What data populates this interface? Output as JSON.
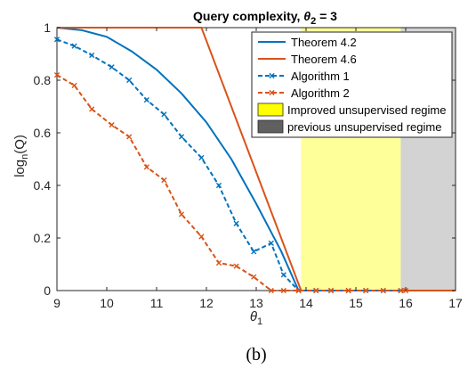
{
  "caption": "(b)",
  "chart_data": {
    "type": "line",
    "title_prefix": "Query complexity, ",
    "title_symbol": "θ",
    "title_subscript": "2",
    "title_suffix": " = 3",
    "xlabel_symbol": "θ",
    "xlabel_subscript": "1",
    "ylabel_prefix": "log",
    "ylabel_subscript": "n",
    "ylabel_suffix": "(Q)",
    "xlim": [
      9,
      17
    ],
    "ylim": [
      0,
      1
    ],
    "xticks": [
      9,
      10,
      11,
      12,
      13,
      14,
      15,
      16,
      17
    ],
    "yticks": [
      0,
      0.2,
      0.4,
      0.6,
      0.8,
      1
    ],
    "ytick_labels": [
      "0",
      "0.2",
      "0.4",
      "0.6",
      "0.8",
      "1"
    ],
    "grid": false,
    "legend_position": "top-right",
    "regions": [
      {
        "name": "Improved unsupervised regime",
        "x_start": 13.9,
        "x_end": 15.9,
        "color": "#ffff99"
      },
      {
        "name": "previous unsupervised regime",
        "x_start": 15.9,
        "x_end": 17,
        "color": "#d3d3d3"
      }
    ],
    "legend_swatches": [
      {
        "name": "Improved unsupervised regime",
        "fill": "#ffff00"
      },
      {
        "name": "previous unsupervised regime",
        "fill": "#606060"
      }
    ],
    "series": [
      {
        "name": "Theorem 4.2",
        "color": "#0072bd",
        "style": "solid",
        "marker": "none",
        "x": [
          9.0,
          9.5,
          10.0,
          10.5,
          11.0,
          11.5,
          12.0,
          12.5,
          13.0,
          13.5,
          13.85
        ],
        "y": [
          1.0,
          0.99,
          0.965,
          0.91,
          0.84,
          0.75,
          0.64,
          0.5,
          0.33,
          0.15,
          0.0
        ]
      },
      {
        "name": "Theorem 4.6",
        "color": "#d95319",
        "style": "solid",
        "marker": "none",
        "x": [
          9.0,
          11.9,
          13.9,
          17.0
        ],
        "y": [
          1.0,
          1.0,
          0.0,
          0.0
        ]
      },
      {
        "name": "Algorithm 1",
        "color": "#0072bd",
        "style": "dashed",
        "marker": "x",
        "x": [
          9.0,
          9.35,
          9.7,
          10.1,
          10.45,
          10.8,
          11.15,
          11.5,
          11.9,
          12.25,
          12.6,
          12.95,
          13.3,
          13.55,
          13.85,
          14.2,
          14.5,
          14.85,
          15.2,
          15.55,
          15.9
        ],
        "y": [
          0.955,
          0.93,
          0.895,
          0.85,
          0.8,
          0.725,
          0.67,
          0.585,
          0.505,
          0.4,
          0.255,
          0.148,
          0.18,
          0.06,
          0.0,
          0.0,
          0.0,
          0.0,
          0.0,
          0.0,
          0.0
        ]
      },
      {
        "name": "Algorithm 2",
        "color": "#d95319",
        "style": "dashed",
        "marker": "x",
        "x": [
          9.0,
          9.35,
          9.7,
          10.1,
          10.45,
          10.8,
          11.15,
          11.5,
          11.9,
          12.25,
          12.6,
          12.95,
          13.3,
          13.55,
          13.85,
          14.2,
          14.5,
          14.85,
          15.2,
          15.55,
          15.9,
          16.0
        ],
        "y": [
          0.82,
          0.78,
          0.69,
          0.63,
          0.585,
          0.47,
          0.42,
          0.29,
          0.205,
          0.105,
          0.093,
          0.052,
          0.0,
          0.0,
          0.0,
          0.0,
          0.0,
          0.0,
          0.0,
          0.0,
          0.0,
          0.0
        ]
      }
    ]
  }
}
